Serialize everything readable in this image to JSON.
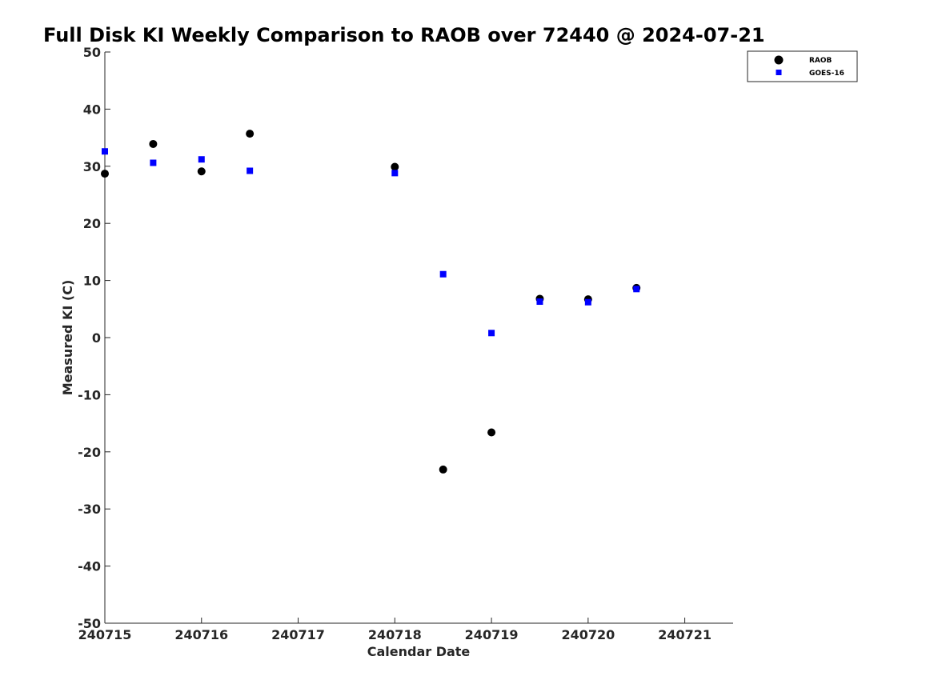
{
  "chart_data": {
    "type": "scatter",
    "title": "Full Disk KI Weekly Comparison to RAOB over 72440 @ 2024-07-21",
    "xlabel": "Calendar Date",
    "ylabel": "Measured KI (C)",
    "xlim": [
      240715,
      240721.5
    ],
    "ylim": [
      -50,
      50
    ],
    "x_ticks": [
      240715,
      240716,
      240717,
      240718,
      240719,
      240720,
      240721
    ],
    "x_tick_labels": [
      "240715",
      "240716",
      "240717",
      "240718",
      "240719",
      "240720",
      "240721"
    ],
    "y_ticks": [
      -50,
      -40,
      -30,
      -20,
      -10,
      0,
      10,
      20,
      30,
      40,
      50
    ],
    "y_tick_labels": [
      "-50",
      "-40",
      "-30",
      "-20",
      "-10",
      "0",
      "10",
      "20",
      "30",
      "40",
      "50"
    ],
    "grid": false,
    "legend_position": "top-right",
    "series": [
      {
        "name": "RAOB",
        "marker": "circle",
        "color": "#000000",
        "points": [
          {
            "x": 240715.0,
            "y": 28.7
          },
          {
            "x": 240715.5,
            "y": 33.9
          },
          {
            "x": 240716.0,
            "y": 29.1
          },
          {
            "x": 240716.5,
            "y": 35.7
          },
          {
            "x": 240718.0,
            "y": 29.9
          },
          {
            "x": 240718.5,
            "y": -23.1
          },
          {
            "x": 240719.0,
            "y": -16.6
          },
          {
            "x": 240719.5,
            "y": 6.8
          },
          {
            "x": 240720.0,
            "y": 6.7
          },
          {
            "x": 240720.5,
            "y": 8.7
          }
        ]
      },
      {
        "name": "GOES-16",
        "marker": "square",
        "color": "#0000ff",
        "points": [
          {
            "x": 240715.0,
            "y": 32.6
          },
          {
            "x": 240715.5,
            "y": 30.6
          },
          {
            "x": 240716.0,
            "y": 31.2
          },
          {
            "x": 240716.5,
            "y": 29.2
          },
          {
            "x": 240718.0,
            "y": 28.8
          },
          {
            "x": 240718.5,
            "y": 11.1
          },
          {
            "x": 240719.0,
            "y": 0.8
          },
          {
            "x": 240719.5,
            "y": 6.3
          },
          {
            "x": 240720.0,
            "y": 6.2
          },
          {
            "x": 240720.5,
            "y": 8.5
          }
        ]
      }
    ]
  }
}
